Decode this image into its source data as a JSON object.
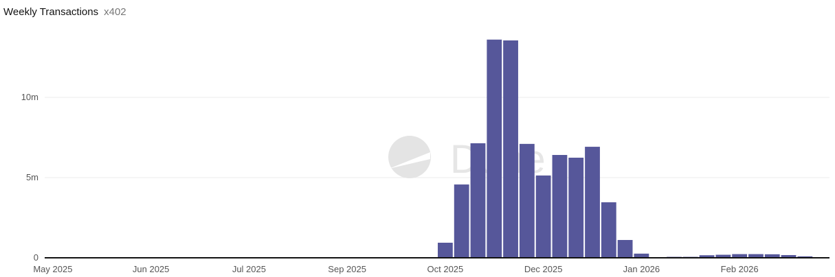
{
  "header": {
    "title": "Weekly Transactions",
    "subtitle": "x402"
  },
  "watermark": "Dune",
  "chart_data": {
    "type": "bar",
    "title": "Weekly Transactions",
    "subtitle": "x402",
    "xlabel": "",
    "ylabel": "",
    "ylim": [
      0,
      14000000
    ],
    "yticks": [
      0,
      5000000,
      10000000
    ],
    "ytick_labels": [
      "0",
      "5m",
      "10m"
    ],
    "xtick_labels": [
      "May 2025",
      "Jun 2025",
      "Jul 2025",
      "Sep 2025",
      "Oct 2025",
      "Dec 2025",
      "Jan 2026",
      "Feb 2026"
    ],
    "xtick_positions": [
      0,
      6,
      12,
      18,
      24,
      30,
      36,
      42
    ],
    "grid": true,
    "color": "#56579a",
    "values": [
      0,
      0,
      0,
      0,
      0,
      0,
      0,
      0,
      0,
      0,
      0,
      0,
      0,
      0,
      0,
      0,
      0,
      0,
      0,
      0,
      0,
      0,
      0,
      0,
      940000,
      4570000,
      7140000,
      13600000,
      13550000,
      7100000,
      5130000,
      6410000,
      6240000,
      6920000,
      3460000,
      1110000,
      260000,
      10000,
      60000,
      60000,
      160000,
      190000,
      230000,
      230000,
      220000,
      170000,
      90000,
      20000
    ]
  }
}
